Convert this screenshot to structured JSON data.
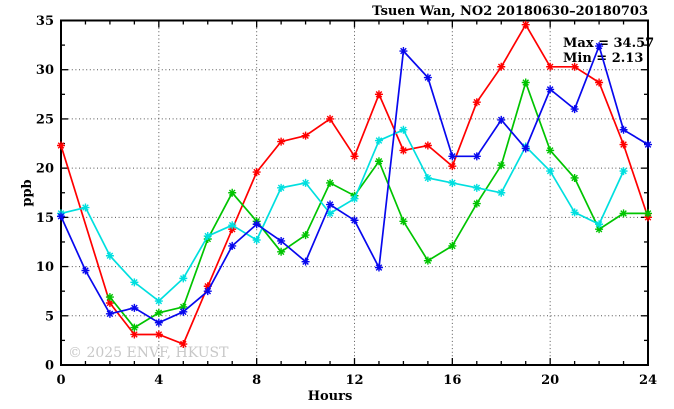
{
  "figure": {
    "watermark": "© 2025 ENVF, HKUST",
    "watermark_color": "#c8c8c8",
    "background": "#ffffff",
    "axis_color": "#000000",
    "grid_color": "#555555"
  },
  "chart_data": {
    "type": "line",
    "title": "Tsuen Wan, NO2 20180630–20180703",
    "xlabel": "Hours",
    "ylabel": "ppb",
    "xlim": [
      0,
      24
    ],
    "ylim": [
      0,
      35
    ],
    "xticks": [
      0,
      4,
      8,
      12,
      16,
      20,
      24
    ],
    "yticks": [
      0,
      5,
      10,
      15,
      20,
      25,
      30,
      35
    ],
    "x_minor_step": 1,
    "y_minor_step": 2.5,
    "grid": true,
    "legend_position": "none",
    "annotations": {
      "max_label": "Max = 34.57",
      "min_label": "Min = 2.13",
      "max_value": 34.57,
      "min_value": 2.13
    },
    "x": [
      0,
      1,
      2,
      3,
      4,
      5,
      6,
      7,
      8,
      9,
      10,
      11,
      12,
      13,
      14,
      15,
      16,
      17,
      18,
      19,
      20,
      21,
      22,
      23,
      24
    ],
    "series": [
      {
        "name": "series-red",
        "color": "#ff0000",
        "values": [
          22.3,
          null,
          6.3,
          3.1,
          3.1,
          2.13,
          8.0,
          13.8,
          19.6,
          22.7,
          23.3,
          25.0,
          21.2,
          27.5,
          21.8,
          22.3,
          20.2,
          26.7,
          30.3,
          34.57,
          30.3,
          30.3,
          28.7,
          22.4,
          15.0
        ]
      },
      {
        "name": "series-green",
        "color": "#00c400",
        "values": [
          null,
          null,
          6.9,
          3.8,
          5.3,
          5.9,
          12.8,
          17.5,
          14.6,
          11.5,
          13.2,
          18.5,
          17.2,
          20.7,
          14.6,
          10.6,
          12.1,
          16.4,
          20.3,
          28.7,
          21.8,
          19.0,
          13.8,
          15.4,
          15.4
        ]
      },
      {
        "name": "series-cyan",
        "color": "#00dfdf",
        "values": [
          15.4,
          16.0,
          11.1,
          8.4,
          6.5,
          8.8,
          13.1,
          14.2,
          12.7,
          18.0,
          18.5,
          15.4,
          16.9,
          22.8,
          23.9,
          19.0,
          18.5,
          18.0,
          17.5,
          22.2,
          19.7,
          15.5,
          14.3,
          19.7,
          null
        ]
      },
      {
        "name": "series-blue",
        "color": "#0808ee",
        "values": [
          15.1,
          9.6,
          5.2,
          5.8,
          4.3,
          5.4,
          7.5,
          12.1,
          14.3,
          12.6,
          10.5,
          16.3,
          14.7,
          9.9,
          31.9,
          29.2,
          21.2,
          21.2,
          24.9,
          22.0,
          28.0,
          26.0,
          32.4,
          23.9,
          22.4
        ]
      }
    ]
  }
}
